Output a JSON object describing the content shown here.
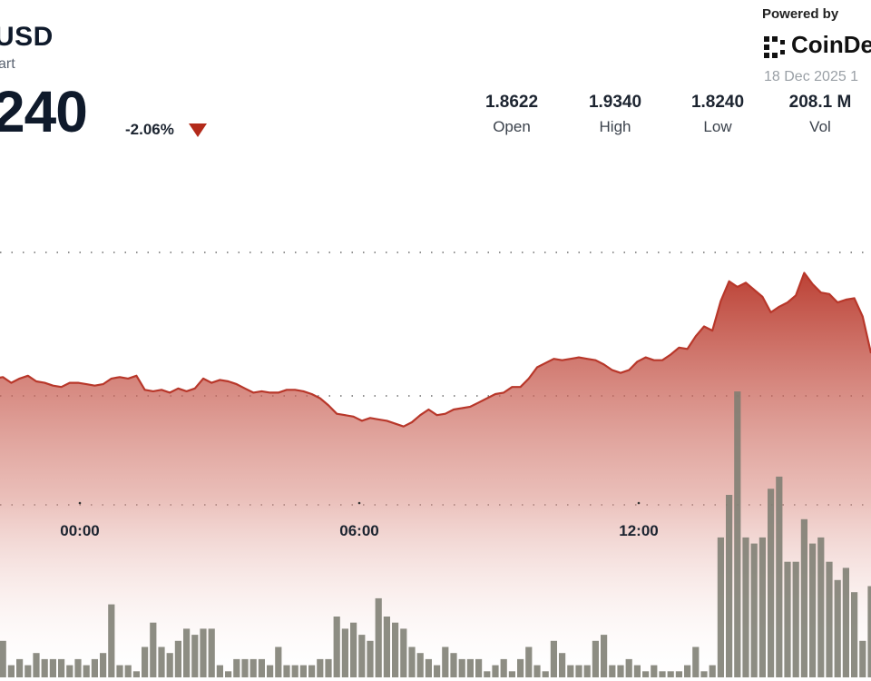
{
  "header": {
    "title": "USD",
    "subtitle": "art",
    "price": "240",
    "change": "-2.06%",
    "change_icon": "triangle-down-icon",
    "change_color": "#b32a1a"
  },
  "branding": {
    "powered_by": "Powered by",
    "brand": "CoinDe",
    "date": "18 Dec 2025 1"
  },
  "stats": [
    {
      "value": "1.8622",
      "label": "Open"
    },
    {
      "value": "1.9340",
      "label": "High"
    },
    {
      "value": "1.8240",
      "label": "Low"
    },
    {
      "value": "208.1 M",
      "label": "Vol"
    }
  ],
  "colors": {
    "line": "#b8372a",
    "area_top": "#c0392b",
    "area_bottom": "#ffffff",
    "volume": "#7d7d72",
    "text": "#1c2430"
  },
  "chart_data": {
    "type": "area",
    "x_tick_labels": [
      "00:00",
      "06:00",
      "12:00"
    ],
    "grid": "horizontal dotted",
    "ylim": [
      1.805,
      1.95
    ],
    "price_series": [
      1.864,
      1.8645,
      1.8625,
      1.864,
      1.865,
      1.863,
      1.8625,
      1.8615,
      1.861,
      1.8625,
      1.8625,
      1.862,
      1.8615,
      1.862,
      1.864,
      1.8645,
      1.864,
      1.865,
      1.86,
      1.8595,
      1.86,
      1.859,
      1.8605,
      1.8595,
      1.8605,
      1.864,
      1.8625,
      1.8635,
      1.863,
      1.862,
      1.8605,
      1.859,
      1.8595,
      1.859,
      1.859,
      1.86,
      1.86,
      1.8595,
      1.8585,
      1.857,
      1.8545,
      1.8515,
      1.851,
      1.8505,
      1.849,
      1.85,
      1.8495,
      1.849,
      1.848,
      1.847,
      1.8485,
      1.851,
      1.853,
      1.851,
      1.8515,
      1.853,
      1.8535,
      1.854,
      1.8555,
      1.857,
      1.8585,
      1.859,
      1.861,
      1.861,
      1.864,
      1.868,
      1.8695,
      1.871,
      1.8705,
      1.871,
      1.8715,
      1.871,
      1.8705,
      1.869,
      1.867,
      1.866,
      1.867,
      1.87,
      1.8715,
      1.8705,
      1.8705,
      1.8725,
      1.875,
      1.8745,
      1.879,
      1.8825,
      1.881,
      1.8915,
      1.8985,
      1.8965,
      1.898,
      1.8955,
      1.893,
      1.8875,
      1.8895,
      1.891,
      1.8935,
      1.9015,
      1.8975,
      1.8945,
      1.894,
      1.891,
      1.892,
      1.8925,
      1.886,
      1.873
    ],
    "volume_series": [
      0.4,
      0.6,
      0.2,
      0.3,
      0.2,
      0.4,
      0.3,
      0.3,
      0.3,
      0.2,
      0.3,
      0.2,
      0.3,
      0.4,
      1.2,
      0.2,
      0.2,
      0.1,
      0.5,
      0.9,
      0.5,
      0.4,
      0.6,
      0.8,
      0.7,
      0.8,
      0.8,
      0.2,
      0.1,
      0.3,
      0.3,
      0.3,
      0.3,
      0.2,
      0.5,
      0.2,
      0.2,
      0.2,
      0.2,
      0.3,
      0.3,
      1.0,
      0.8,
      0.9,
      0.7,
      0.6,
      1.3,
      1.0,
      0.9,
      0.8,
      0.5,
      0.4,
      0.3,
      0.2,
      0.5,
      0.4,
      0.3,
      0.3,
      0.3,
      0.1,
      0.2,
      0.3,
      0.1,
      0.3,
      0.5,
      0.2,
      0.1,
      0.6,
      0.4,
      0.2,
      0.2,
      0.2,
      0.6,
      0.7,
      0.2,
      0.2,
      0.3,
      0.2,
      0.1,
      0.2,
      0.1,
      0.1,
      0.1,
      0.2,
      0.5,
      0.1,
      0.2,
      2.3,
      3.0,
      4.7,
      2.3,
      2.2,
      2.3,
      3.1,
      3.3,
      1.9,
      1.9,
      2.6,
      2.2,
      2.3,
      1.9,
      1.6,
      1.8,
      1.4,
      0.6,
      1.5,
      1.3,
      0.7,
      1.2,
      3.0
    ]
  }
}
